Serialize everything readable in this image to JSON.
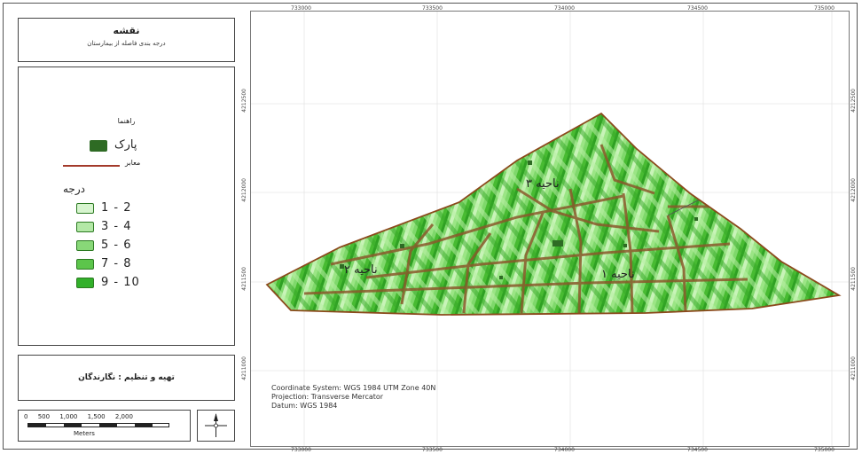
{
  "title": {
    "heading": "نقشه",
    "subtitle": "درجه بندی فاصله از بیمارستان"
  },
  "legend": {
    "title": "راهنما",
    "park_label": "پارک",
    "road_label": "معابر",
    "degree_title": "درجه",
    "classes": [
      {
        "label": "1 - 2",
        "color": "#d7f5cf"
      },
      {
        "label": "3 - 4",
        "color": "#b3e8a6"
      },
      {
        "label": "5 - 6",
        "color": "#88d878"
      },
      {
        "label": "7 - 8",
        "color": "#5cc54b"
      },
      {
        "label": "9 - 10",
        "color": "#32b02a"
      }
    ]
  },
  "maker": "تهیه و تنظیم : نگارندگان",
  "scale": {
    "ticks": [
      "0",
      "500",
      "1,000",
      "1,500",
      "2,000"
    ],
    "unit": "Meters"
  },
  "north_arrow": "north-arrow-icon",
  "coordinates": {
    "top": [
      "733000",
      "733500",
      "734000",
      "734500",
      "735000"
    ],
    "bottom": [
      "733000",
      "733500",
      "734000",
      "734500",
      "735000"
    ],
    "left": [
      "4212500",
      "4212000",
      "4211500",
      "4211000"
    ],
    "right": [
      "4212500",
      "4212000",
      "4211500",
      "4211000"
    ]
  },
  "map_labels": {
    "district_1": "ناحیه ۱",
    "district_2": "ناحیه ۲",
    "district_3": "ناحیه ۳"
  },
  "info": {
    "line1": "Coordinate System: WGS 1984 UTM Zone 40N",
    "line2": "Projection: Transverse Mercator",
    "line3": "Datum: WGS 1984"
  },
  "colors": {
    "park": "#2e6b24",
    "road": "#a33a2a",
    "boundary": "#8b4a1c"
  }
}
